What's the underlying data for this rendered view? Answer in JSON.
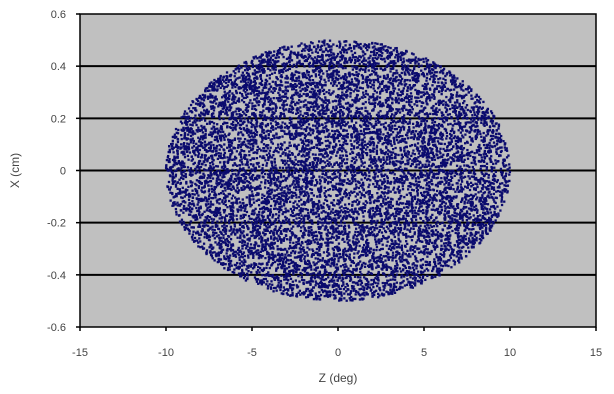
{
  "chart_data": {
    "type": "scatter",
    "title": "",
    "xlabel": "Z (deg)",
    "ylabel": "X (cm)",
    "xlim": [
      -15,
      15
    ],
    "ylim": [
      -0.6,
      0.6
    ],
    "x_ticks": [
      -15,
      -10,
      -5,
      0,
      5,
      10,
      15
    ],
    "y_ticks": [
      -0.6,
      -0.4,
      -0.2,
      0,
      0.2,
      0.4,
      0.6
    ],
    "x_tick_labels": [
      "-15",
      "-10",
      "-5",
      "0",
      "5",
      "10",
      "15"
    ],
    "y_tick_labels": [
      "-0.6",
      "-0.4",
      "-0.2",
      "0",
      "0.2",
      "0.4",
      "0.6"
    ],
    "grid": {
      "horizontal": true,
      "vertical": false
    },
    "legend": "none",
    "plot_background": "#C0C0C0",
    "series": [
      {
        "color": "#0B0B6E",
        "distribution": "uniform_ellipse",
        "center": [
          0,
          0
        ],
        "x_halfwidth": 10,
        "y_halfheight": 0.5,
        "sample_count": 10000
      }
    ]
  }
}
